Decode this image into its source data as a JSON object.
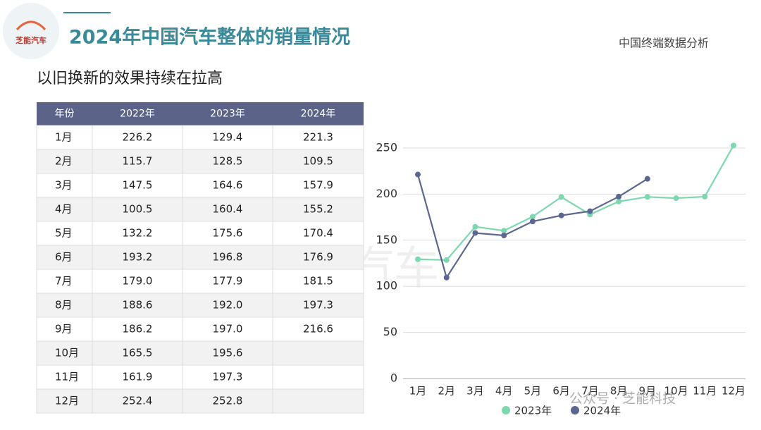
{
  "header": {
    "logo": "芝能汽车",
    "title": "2024年中国汽车整体的销量情况",
    "source": "中国终端数据分析",
    "subtitle": "以旧换新的效果持续在拉高"
  },
  "table": {
    "columns": [
      "年份",
      "2022年",
      "2023年",
      "2024年"
    ],
    "rows": [
      [
        "1月",
        "226.2",
        "129.4",
        "221.3"
      ],
      [
        "2月",
        "115.7",
        "128.5",
        "109.5"
      ],
      [
        "3月",
        "147.5",
        "164.6",
        "157.9"
      ],
      [
        "4月",
        "100.5",
        "160.4",
        "155.2"
      ],
      [
        "5月",
        "132.2",
        "175.6",
        "170.4"
      ],
      [
        "6月",
        "193.2",
        "196.8",
        "176.9"
      ],
      [
        "7月",
        "179.0",
        "177.9",
        "181.5"
      ],
      [
        "8月",
        "188.6",
        "192.0",
        "197.3"
      ],
      [
        "9月",
        "186.2",
        "197.0",
        "216.6"
      ],
      [
        "10月",
        "165.5",
        "195.6"
      ],
      [
        "11月",
        "161.9",
        "197.3"
      ],
      [
        "12月",
        "252.4",
        "252.8"
      ]
    ]
  },
  "watermark": "芝能汽车",
  "overlay": "公众号 · 芝能科技",
  "chart_data": {
    "type": "line",
    "categories": [
      "1月",
      "2月",
      "3月",
      "4月",
      "5月",
      "6月",
      "7月",
      "8月",
      "9月",
      "10月",
      "11月",
      "12月"
    ],
    "series": [
      {
        "name": "2023年",
        "color": "#7dd8b0",
        "values": [
          129.4,
          128.5,
          164.6,
          160.4,
          175.6,
          196.8,
          177.9,
          192.0,
          197.0,
          195.6,
          197.3,
          252.8
        ]
      },
      {
        "name": "2024年",
        "color": "#5b6790",
        "values": [
          221.3,
          109.5,
          157.9,
          155.2,
          170.4,
          176.9,
          181.5,
          197.3,
          216.6,
          null,
          null,
          null
        ]
      }
    ],
    "ylim": [
      0,
      250
    ],
    "yticks": [
      0,
      50,
      100,
      150,
      200,
      250
    ],
    "grid": true,
    "legend": "bottom"
  }
}
